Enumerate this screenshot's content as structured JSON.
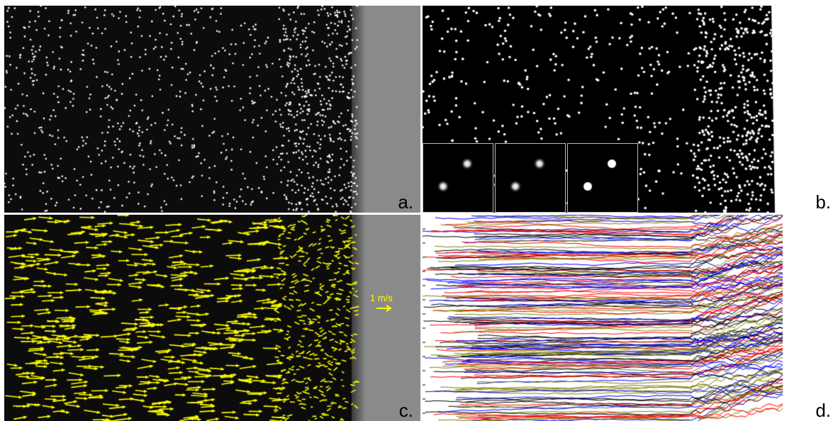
{
  "panels": {
    "a": {
      "label": "a."
    },
    "b": {
      "label": "b."
    },
    "c": {
      "label": "c.",
      "scale_label": "1 m/s"
    },
    "d": {
      "label": "d."
    }
  },
  "colors": {
    "background": "#0c0c0c",
    "particle": "#ffffff",
    "wall": "#8a8a8a",
    "vector": "#ffff00",
    "track_palette": [
      "#000000",
      "#ff0000",
      "#0000ff",
      "#808000"
    ]
  },
  "icons": [
    "right-arrow-icon"
  ]
}
